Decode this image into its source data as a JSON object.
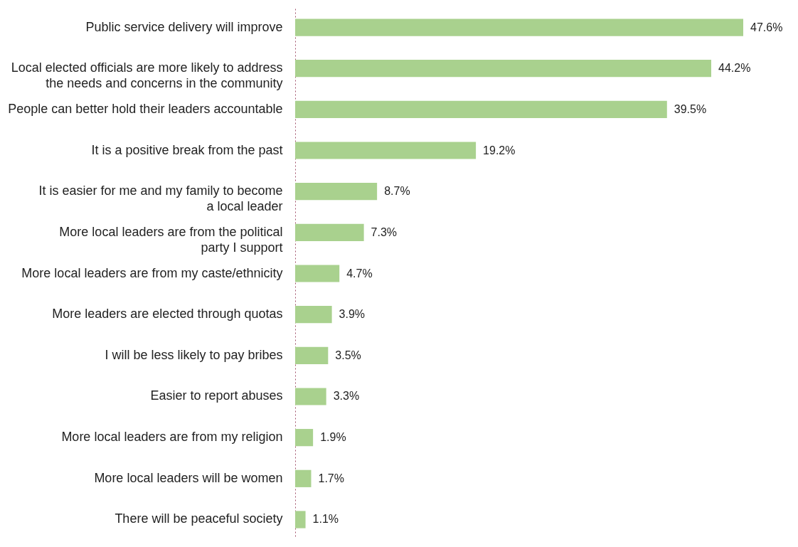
{
  "chart_data": {
    "type": "bar",
    "orientation": "horizontal",
    "categories": [
      "Public service delivery will improve",
      "Local elected officials are more likely to address\nthe needs and concerns in the community",
      "People can better hold their leaders accountable",
      "It is a positive break from the past",
      "It is easier for me and my family to become\na local leader",
      "More local leaders are from the political\nparty I support",
      "More local leaders are from my caste/ethnicity",
      "More leaders are elected through quotas",
      "I will be less likely to pay bribes",
      "Easier to report abuses",
      "More local leaders are from my religion",
      "More local leaders will be women",
      "There will be peaceful society"
    ],
    "values": [
      47.6,
      44.2,
      39.5,
      19.2,
      8.7,
      7.3,
      4.7,
      3.9,
      3.5,
      3.3,
      1.9,
      1.7,
      1.1
    ],
    "value_labels": [
      "47.6%",
      "44.2%",
      "39.5%",
      "19.2%",
      "8.7%",
      "7.3%",
      "4.7%",
      "3.9%",
      "3.5%",
      "3.3%",
      "1.9%",
      "1.7%",
      "1.1%"
    ],
    "color": "#a9d18e"
  }
}
